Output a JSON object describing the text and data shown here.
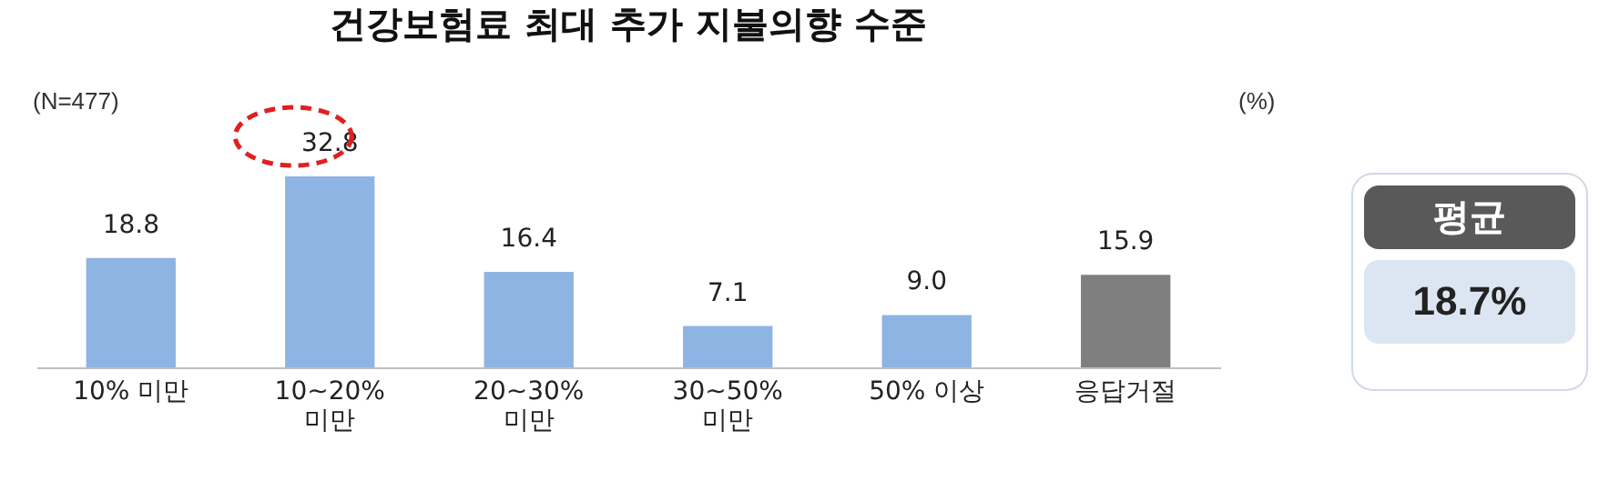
{
  "chart_data": [
    {
      "type": "bar",
      "title": "건강보험료 최대 추가 지불의향 수준",
      "categories": [
        "10% 미만",
        "10~20%\n미만",
        "20~30%\n미만",
        "30~50%\n미만",
        "50% 이상",
        "응답거절"
      ],
      "values": [
        18.8,
        32.8,
        16.4,
        7.1,
        9.0,
        15.9
      ],
      "colors": [
        "#8db4e2",
        "#8db4e2",
        "#8db4e2",
        "#8db4e2",
        "#8db4e2",
        "#7f7f7f"
      ],
      "value_labels": [
        "18.8",
        "32.8",
        "16.4",
        "7.1",
        "9.0",
        "15.9"
      ],
      "tick_labels": "x",
      "grid": false,
      "annotations": [
        "(N=477)",
        "(%)"
      ]
    },
    {
      "type": "other",
      "title": "평균",
      "annotations": [
        "18.7%"
      ]
    }
  ]
}
